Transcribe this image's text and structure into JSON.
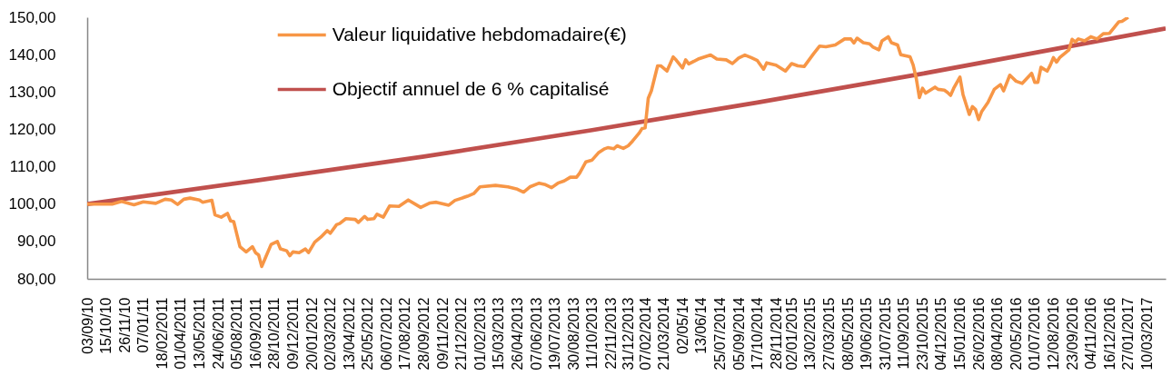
{
  "chart_data": {
    "type": "line",
    "series": [
      {
        "name": "Valeur liquidative hebdomadaire(€)",
        "color": "#f79646",
        "x": [
          "2010-09-03",
          "2010-10-29",
          "2010-11-19",
          "2010-12-17",
          "2011-01-07",
          "2011-02-04",
          "2011-02-25",
          "2011-03-11",
          "2011-03-25",
          "2011-04-08",
          "2011-04-22",
          "2011-05-13",
          "2011-05-20",
          "2011-06-10",
          "2011-06-17",
          "2011-07-01",
          "2011-07-15",
          "2011-07-22",
          "2011-07-29",
          "2011-08-12",
          "2011-08-26",
          "2011-09-09",
          "2011-09-16",
          "2011-09-23",
          "2011-09-30",
          "2011-10-07",
          "2011-10-21",
          "2011-11-04",
          "2011-11-11",
          "2011-11-25",
          "2011-12-02",
          "2011-12-09",
          "2011-12-23",
          "2012-01-06",
          "2012-01-13",
          "2012-01-27",
          "2012-02-10",
          "2012-02-24",
          "2012-03-02",
          "2012-03-16",
          "2012-03-23",
          "2012-04-06",
          "2012-04-27",
          "2012-05-04",
          "2012-05-18",
          "2012-05-25",
          "2012-06-08",
          "2012-06-15",
          "2012-06-29",
          "2012-07-13",
          "2012-08-03",
          "2012-08-24",
          "2012-09-21",
          "2012-10-12",
          "2012-10-26",
          "2012-11-23",
          "2012-12-07",
          "2013-01-04",
          "2013-01-18",
          "2013-02-01",
          "2013-03-08",
          "2013-04-05",
          "2013-04-26",
          "2013-05-10",
          "2013-05-24",
          "2013-06-14",
          "2013-06-28",
          "2013-07-12",
          "2013-07-26",
          "2013-08-09",
          "2013-08-23",
          "2013-09-06",
          "2013-09-13",
          "2013-09-27",
          "2013-10-11",
          "2013-10-25",
          "2013-11-08",
          "2013-11-15",
          "2013-11-29",
          "2013-12-06",
          "2013-12-20",
          "2013-12-31",
          "2014-01-10",
          "2014-01-24",
          "2014-01-31",
          "2014-02-07",
          "2014-02-14",
          "2014-02-21",
          "2014-03-07",
          "2014-03-14",
          "2014-03-28",
          "2014-04-04",
          "2014-04-11",
          "2014-04-18",
          "2014-05-02",
          "2014-05-09",
          "2014-05-16",
          "2014-06-06",
          "2014-07-04",
          "2014-07-18",
          "2014-08-08",
          "2014-08-22",
          "2014-09-05",
          "2014-09-19",
          "2014-10-03",
          "2014-10-17",
          "2014-10-31",
          "2014-11-07",
          "2014-11-28",
          "2014-12-19",
          "2015-01-02",
          "2015-01-16",
          "2015-01-30",
          "2015-02-20",
          "2015-03-06",
          "2015-03-20",
          "2015-04-10",
          "2015-05-01",
          "2015-05-15",
          "2015-05-22",
          "2015-05-29",
          "2015-06-12",
          "2015-06-26",
          "2015-07-03",
          "2015-07-17",
          "2015-07-24",
          "2015-08-07",
          "2015-08-14",
          "2015-08-28",
          "2015-09-04",
          "2015-09-25",
          "2015-10-02",
          "2015-10-09",
          "2015-10-16",
          "2015-10-23",
          "2015-10-30",
          "2015-11-20",
          "2015-11-27",
          "2015-12-11",
          "2015-12-18",
          "2015-12-25",
          "2016-01-01",
          "2016-01-15",
          "2016-01-22",
          "2016-02-05",
          "2016-02-12",
          "2016-02-19",
          "2016-02-26",
          "2016-03-04",
          "2016-03-18",
          "2016-04-01",
          "2016-04-15",
          "2016-04-22",
          "2016-05-06",
          "2016-05-20",
          "2016-06-03",
          "2016-06-24",
          "2016-07-01",
          "2016-07-08",
          "2016-07-15",
          "2016-07-29",
          "2016-08-05",
          "2016-08-12",
          "2016-08-19",
          "2016-08-26",
          "2016-09-16",
          "2016-09-23",
          "2016-09-30",
          "2016-10-07",
          "2016-10-21",
          "2016-11-04",
          "2016-11-18",
          "2016-12-02",
          "2016-12-16",
          "2017-01-06",
          "2017-01-13",
          "2017-01-27"
        ],
        "values": [
          100.0,
          100.0,
          100.7,
          99.8,
          100.6,
          100.2,
          101.3,
          101.1,
          99.9,
          101.3,
          101.6,
          101.1,
          100.5,
          101.0,
          97.1,
          96.5,
          97.5,
          95.5,
          95.3,
          88.6,
          87.2,
          88.6,
          87.0,
          86.4,
          83.3,
          85.3,
          89.2,
          90.0,
          88.0,
          87.5,
          86.2,
          87.2,
          87.0,
          88.0,
          87.0,
          89.8,
          91.2,
          92.9,
          92.2,
          94.5,
          94.8,
          96.1,
          95.9,
          95.1,
          96.7,
          95.9,
          96.1,
          97.3,
          96.5,
          99.5,
          99.4,
          101.1,
          99.1,
          100.3,
          100.5,
          99.7,
          101.0,
          102.1,
          102.8,
          104.6,
          105.0,
          104.6,
          104.0,
          103.2,
          104.6,
          105.6,
          105.2,
          104.4,
          105.6,
          106.2,
          107.2,
          107.2,
          108.3,
          111.3,
          111.8,
          113.7,
          114.8,
          115.1,
          114.8,
          115.6,
          114.9,
          115.6,
          116.9,
          118.9,
          120.2,
          120.4,
          128.3,
          130.3,
          137.0,
          137.0,
          135.6,
          137.5,
          139.4,
          138.5,
          136.4,
          138.6,
          137.5,
          138.8,
          139.9,
          138.8,
          138.6,
          137.6,
          139.1,
          139.9,
          139.2,
          138.4,
          136.1,
          137.8,
          137.2,
          135.6,
          137.6,
          137.0,
          136.8,
          140.2,
          142.3,
          142.1,
          142.6,
          144.2,
          144.2,
          143.1,
          144.4,
          143.2,
          142.9,
          142.1,
          141.3,
          143.7,
          144.8,
          143.2,
          142.6,
          140.0,
          139.4,
          137.2,
          133.6,
          128.5,
          131.0,
          129.7,
          131.3,
          130.7,
          130.5,
          129.9,
          129.1,
          131.0,
          134.0,
          129.3,
          124.0,
          126.1,
          125.3,
          122.6,
          124.8,
          127.2,
          130.7,
          132.0,
          130.3,
          134.5,
          132.9,
          132.3,
          135.0,
          132.6,
          132.6,
          136.6,
          135.6,
          137.2,
          139.2,
          138.0,
          139.2,
          141.3,
          144.1,
          143.4,
          144.2,
          143.7,
          144.8,
          144.2,
          145.6,
          145.7,
          148.8,
          148.9,
          150.0
        ]
      },
      {
        "name": "Objectif annuel de 6 % capitalisé",
        "color": "#c0504d",
        "x": [
          "2010-09-03",
          "2011-09-16",
          "2012-09-28",
          "2013-10-11",
          "2014-10-17",
          "2015-10-23",
          "2016-11-04",
          "2017-04-21"
        ],
        "values": [
          100.0,
          106.3,
          112.7,
          119.8,
          127.2,
          134.9,
          143.3,
          147.0
        ]
      }
    ],
    "xlim": [
      "2010-09-03",
      "2017-04-21"
    ],
    "xticks": [
      {
        "value": "2010-09-03",
        "label": "03/09/10"
      },
      {
        "value": "2010-10-15",
        "label": "15/10/10"
      },
      {
        "value": "2010-11-26",
        "label": "26/11/10"
      },
      {
        "value": "2011-01-07",
        "label": "07/01/11"
      },
      {
        "value": "2011-02-18",
        "label": "18/02/2011"
      },
      {
        "value": "2011-04-01",
        "label": "01/04/2011"
      },
      {
        "value": "2011-05-13",
        "label": "13/05/2011"
      },
      {
        "value": "2011-06-24",
        "label": "24/06/2011"
      },
      {
        "value": "2011-08-05",
        "label": "05/08/2011"
      },
      {
        "value": "2011-09-16",
        "label": "16/09/2011"
      },
      {
        "value": "2011-10-28",
        "label": "28/10/2011"
      },
      {
        "value": "2011-12-09",
        "label": "09/12/2011"
      },
      {
        "value": "2012-01-20",
        "label": "20/01/2012"
      },
      {
        "value": "2012-03-02",
        "label": "02/03/2012"
      },
      {
        "value": "2012-04-13",
        "label": "13/04/2012"
      },
      {
        "value": "2012-05-25",
        "label": "25/05/2012"
      },
      {
        "value": "2012-07-06",
        "label": "06/07/2012"
      },
      {
        "value": "2012-08-17",
        "label": "17/08/2012"
      },
      {
        "value": "2012-09-28",
        "label": "28/09/2012"
      },
      {
        "value": "2012-11-09",
        "label": "09/11/2012"
      },
      {
        "value": "2012-12-21",
        "label": "21/12/2012"
      },
      {
        "value": "2013-02-01",
        "label": "01/02/2013"
      },
      {
        "value": "2013-03-15",
        "label": "15/03/2013"
      },
      {
        "value": "2013-04-26",
        "label": "26/04/2013"
      },
      {
        "value": "2013-06-07",
        "label": "07/06/2013"
      },
      {
        "value": "2013-07-19",
        "label": "19/07/2013"
      },
      {
        "value": "2013-08-30",
        "label": "30/08/2013"
      },
      {
        "value": "2013-10-11",
        "label": "11/10/2013"
      },
      {
        "value": "2013-11-22",
        "label": "22/11/2013"
      },
      {
        "value": "2013-12-31",
        "label": "31/12/2013"
      },
      {
        "value": "2014-02-07",
        "label": "07/02/2014"
      },
      {
        "value": "2014-03-21",
        "label": "21/03/2014"
      },
      {
        "value": "2014-05-02",
        "label": "02/05/14"
      },
      {
        "value": "2014-06-13",
        "label": "13/06/14"
      },
      {
        "value": "2014-07-25",
        "label": "25/07/2014"
      },
      {
        "value": "2014-09-05",
        "label": "05/09/2014"
      },
      {
        "value": "2014-10-17",
        "label": "17/10/2014"
      },
      {
        "value": "2014-11-28",
        "label": "28/11/2014"
      },
      {
        "value": "2015-01-02",
        "label": "02/01/2015"
      },
      {
        "value": "2015-02-13",
        "label": "13/02/2015"
      },
      {
        "value": "2015-03-27",
        "label": "27/03/2015"
      },
      {
        "value": "2015-05-08",
        "label": "08/05/2015"
      },
      {
        "value": "2015-06-19",
        "label": "19/06/2015"
      },
      {
        "value": "2015-07-31",
        "label": "31/07/2015"
      },
      {
        "value": "2015-09-11",
        "label": "11/09/2015"
      },
      {
        "value": "2015-10-23",
        "label": "23/10/2015"
      },
      {
        "value": "2015-12-04",
        "label": "04/12/2015"
      },
      {
        "value": "2016-01-15",
        "label": "15/01/2016"
      },
      {
        "value": "2016-02-26",
        "label": "26/02/2016"
      },
      {
        "value": "2016-04-08",
        "label": "08/04/2016"
      },
      {
        "value": "2016-05-20",
        "label": "20/05/2016"
      },
      {
        "value": "2016-07-01",
        "label": "01/07/2016"
      },
      {
        "value": "2016-08-12",
        "label": "12/08/2016"
      },
      {
        "value": "2016-09-23",
        "label": "23/09/2016"
      },
      {
        "value": "2016-11-04",
        "label": "04/11/2016"
      },
      {
        "value": "2016-12-16",
        "label": "16/12/2016"
      },
      {
        "value": "2017-01-27",
        "label": "27/01/2017"
      },
      {
        "value": "2017-03-10",
        "label": "10/03/2017"
      }
    ],
    "ylim": [
      80,
      150
    ],
    "yticks": [
      {
        "value": 80,
        "label": "80,00"
      },
      {
        "value": 90,
        "label": "90,00"
      },
      {
        "value": 100,
        "label": "100,00"
      },
      {
        "value": 110,
        "label": "110,00"
      },
      {
        "value": 120,
        "label": "120,00"
      },
      {
        "value": 130,
        "label": "130,00"
      },
      {
        "value": 140,
        "label": "140,00"
      },
      {
        "value": 150,
        "label": "150,00"
      }
    ],
    "grid": false,
    "legend": "top left"
  }
}
